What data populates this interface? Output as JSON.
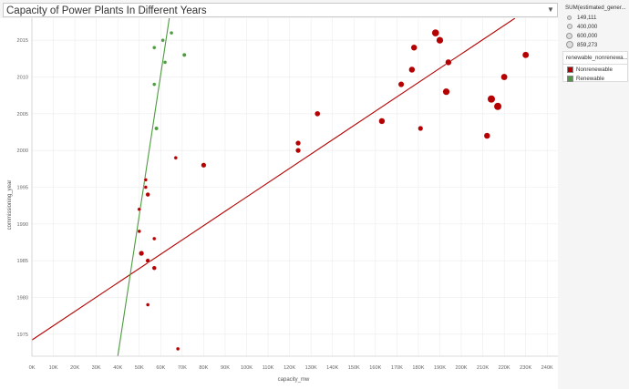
{
  "header": {
    "title": "Capacity of Power Plants In Different Years",
    "dropdown_icon": "chevron-down-icon"
  },
  "size_legend": {
    "title": "SUM(estimated_gener...",
    "items": [
      "149,111",
      "400,000",
      "600,000",
      "859,273"
    ]
  },
  "color_legend": {
    "title": "renewable_nonrenewa...",
    "items": [
      {
        "label": "Nonrenewable",
        "color": "#b40000"
      },
      {
        "label": "Renewable",
        "color": "#4e9a40"
      }
    ]
  },
  "chart_data": {
    "type": "scatter",
    "xlabel": "capacity_mw",
    "ylabel": "commissioning_year",
    "xlim": [
      0,
      245000
    ],
    "ylim": [
      1972,
      2018
    ],
    "x_ticks": [
      "0K",
      "10K",
      "20K",
      "30K",
      "40K",
      "50K",
      "60K",
      "70K",
      "80K",
      "90K",
      "100K",
      "110K",
      "120K",
      "130K",
      "140K",
      "150K",
      "160K",
      "170K",
      "180K",
      "190K",
      "200K",
      "210K",
      "220K",
      "230K",
      "240K"
    ],
    "x_tick_values": [
      0,
      10000,
      20000,
      30000,
      40000,
      50000,
      60000,
      70000,
      80000,
      90000,
      100000,
      110000,
      120000,
      130000,
      140000,
      150000,
      160000,
      170000,
      180000,
      190000,
      200000,
      210000,
      220000,
      230000,
      240000
    ],
    "y_ticks": [
      "1975",
      "1980",
      "1985",
      "1990",
      "1995",
      "2000",
      "2005",
      "2010",
      "2015"
    ],
    "y_tick_values": [
      1975,
      1980,
      1985,
      1990,
      1995,
      2000,
      2005,
      2010,
      2015
    ],
    "grid": true,
    "legend": "right",
    "series": [
      {
        "name": "Nonrenewable",
        "color": "#b40000",
        "points": [
          {
            "x": 188000,
            "y": 2016,
            "size": 700000
          },
          {
            "x": 190000,
            "y": 2015,
            "size": 650000
          },
          {
            "x": 178000,
            "y": 2014,
            "size": 550000
          },
          {
            "x": 230000,
            "y": 2013,
            "size": 600000
          },
          {
            "x": 194000,
            "y": 2012,
            "size": 550000
          },
          {
            "x": 177000,
            "y": 2011,
            "size": 550000
          },
          {
            "x": 220000,
            "y": 2010,
            "size": 600000
          },
          {
            "x": 172000,
            "y": 2009,
            "size": 500000
          },
          {
            "x": 193000,
            "y": 2008,
            "size": 650000
          },
          {
            "x": 214000,
            "y": 2007,
            "size": 750000
          },
          {
            "x": 217000,
            "y": 2006,
            "size": 750000
          },
          {
            "x": 133000,
            "y": 2005,
            "size": 450000
          },
          {
            "x": 163000,
            "y": 2004,
            "size": 550000
          },
          {
            "x": 181000,
            "y": 2003,
            "size": 400000
          },
          {
            "x": 212000,
            "y": 2002,
            "size": 550000
          },
          {
            "x": 124000,
            "y": 2001,
            "size": 400000
          },
          {
            "x": 124000,
            "y": 2000,
            "size": 400000
          },
          {
            "x": 67000,
            "y": 1999,
            "size": 200000
          },
          {
            "x": 80000,
            "y": 1998,
            "size": 400000
          },
          {
            "x": 53000,
            "y": 1996,
            "size": 200000
          },
          {
            "x": 53000,
            "y": 1995,
            "size": 200000
          },
          {
            "x": 54000,
            "y": 1994,
            "size": 300000
          },
          {
            "x": 50000,
            "y": 1992,
            "size": 200000
          },
          {
            "x": 50000,
            "y": 1989,
            "size": 200000
          },
          {
            "x": 57000,
            "y": 1988,
            "size": 200000
          },
          {
            "x": 51000,
            "y": 1986,
            "size": 400000
          },
          {
            "x": 54000,
            "y": 1985,
            "size": 300000
          },
          {
            "x": 57000,
            "y": 1984,
            "size": 300000
          },
          {
            "x": 54000,
            "y": 1979,
            "size": 200000
          },
          {
            "x": 68000,
            "y": 1973,
            "size": 200000
          }
        ],
        "trend": {
          "x1": 0,
          "y1": 1974.2,
          "x2": 225000,
          "y2": 2018
        }
      },
      {
        "name": "Renewable",
        "color": "#4e9a40",
        "points": [
          {
            "x": 65000,
            "y": 2016,
            "size": 200000
          },
          {
            "x": 61000,
            "y": 2015,
            "size": 200000
          },
          {
            "x": 57000,
            "y": 2014,
            "size": 200000
          },
          {
            "x": 71000,
            "y": 2013,
            "size": 250000
          },
          {
            "x": 62000,
            "y": 2012,
            "size": 200000
          },
          {
            "x": 57000,
            "y": 2009,
            "size": 200000
          },
          {
            "x": 58000,
            "y": 2003,
            "size": 250000
          }
        ],
        "trend": {
          "x1": 40000,
          "y1": 1972,
          "x2": 64000,
          "y2": 2018
        }
      }
    ]
  }
}
